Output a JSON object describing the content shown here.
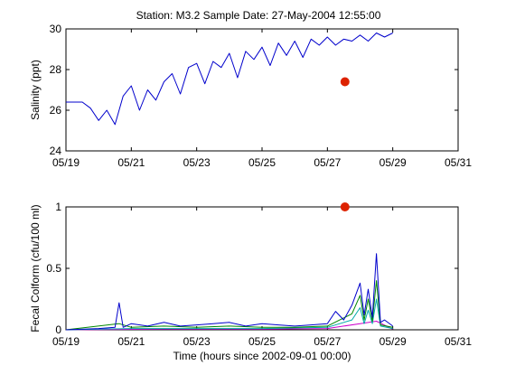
{
  "figure": {
    "title": "Station: M3.2  Sample Date: 27-May-2004 12:55:00"
  },
  "chart_data": [
    {
      "type": "line",
      "ylabel": "Salinity (ppt)",
      "xlabel": "",
      "xlim": [
        "05/19",
        "05/31"
      ],
      "ylim": [
        24,
        30
      ],
      "x_ticks": [
        "05/19",
        "05/21",
        "05/23",
        "05/25",
        "05/27",
        "05/29",
        "05/31"
      ],
      "y_ticks": [
        24,
        26,
        28,
        30
      ],
      "grid": false,
      "series": [
        {
          "color": "#0000cc",
          "points": [
            [
              "05/19",
              26.4
            ],
            [
              "05/19 12:00",
              26.4
            ],
            [
              "05/19 18:00",
              26.1
            ],
            [
              "05/20",
              25.5
            ],
            [
              "05/20 06:00",
              26.0
            ],
            [
              "05/20 12:00",
              25.3
            ],
            [
              "05/20 18:00",
              26.7
            ],
            [
              "05/21",
              27.2
            ],
            [
              "05/21 06:00",
              26.0
            ],
            [
              "05/21 12:00",
              27.0
            ],
            [
              "05/21 18:00",
              26.5
            ],
            [
              "05/22",
              27.4
            ],
            [
              "05/22 06:00",
              27.8
            ],
            [
              "05/22 12:00",
              26.8
            ],
            [
              "05/22 18:00",
              28.1
            ],
            [
              "05/23",
              28.3
            ],
            [
              "05/23 06:00",
              27.3
            ],
            [
              "05/23 12:00",
              28.4
            ],
            [
              "05/23 18:00",
              28.1
            ],
            [
              "05/24",
              28.8
            ],
            [
              "05/24 06:00",
              27.6
            ],
            [
              "05/24 12:00",
              28.9
            ],
            [
              "05/24 18:00",
              28.5
            ],
            [
              "05/25",
              29.1
            ],
            [
              "05/25 06:00",
              28.2
            ],
            [
              "05/25 12:00",
              29.3
            ],
            [
              "05/25 18:00",
              28.7
            ],
            [
              "05/26",
              29.4
            ],
            [
              "05/26 06:00",
              28.6
            ],
            [
              "05/26 12:00",
              29.5
            ],
            [
              "05/26 18:00",
              29.2
            ],
            [
              "05/27",
              29.6
            ],
            [
              "05/27 06:00",
              29.2
            ],
            [
              "05/27 12:00",
              29.5
            ],
            [
              "05/27 18:00",
              29.4
            ],
            [
              "05/28",
              29.7
            ],
            [
              "05/28 06:00",
              29.4
            ],
            [
              "05/28 12:00",
              29.8
            ],
            [
              "05/28 18:00",
              29.6
            ],
            [
              "05/29",
              29.8
            ]
          ]
        }
      ],
      "sample": {
        "x": "05/27 12:55",
        "y": 27.4,
        "color": "#dd2200"
      }
    },
    {
      "type": "line",
      "ylabel": "Fecal Colform (cfu/100 ml)",
      "xlabel": "Time (hours since 2002-09-01 00:00)",
      "xlim": [
        "05/19",
        "05/31"
      ],
      "ylim": [
        0,
        1
      ],
      "x_ticks": [
        "05/19",
        "05/21",
        "05/23",
        "05/25",
        "05/27",
        "05/29",
        "05/31"
      ],
      "y_ticks": [
        "0",
        "0.5",
        "1"
      ],
      "grid": false,
      "series": [
        {
          "color": "#0000cc",
          "points": [
            [
              "05/19",
              0.0
            ],
            [
              "05/20",
              0.01
            ],
            [
              "05/20 12:00",
              0.02
            ],
            [
              "05/20 15:00",
              0.22
            ],
            [
              "05/20 18:00",
              0.02
            ],
            [
              "05/21",
              0.05
            ],
            [
              "05/21 12:00",
              0.03
            ],
            [
              "05/22",
              0.06
            ],
            [
              "05/22 12:00",
              0.03
            ],
            [
              "05/23",
              0.04
            ],
            [
              "05/23 12:00",
              0.05
            ],
            [
              "05/24",
              0.06
            ],
            [
              "05/24 12:00",
              0.03
            ],
            [
              "05/25",
              0.05
            ],
            [
              "05/25 12:00",
              0.04
            ],
            [
              "05/26",
              0.03
            ],
            [
              "05/26 12:00",
              0.04
            ],
            [
              "05/27",
              0.05
            ],
            [
              "05/27 06:00",
              0.15
            ],
            [
              "05/27 12:00",
              0.08
            ],
            [
              "05/27 18:00",
              0.2
            ],
            [
              "05/28",
              0.38
            ],
            [
              "05/28 03:00",
              0.12
            ],
            [
              "05/28 06:00",
              0.33
            ],
            [
              "05/28 09:00",
              0.1
            ],
            [
              "05/28 12:00",
              0.62
            ],
            [
              "05/28 15:00",
              0.06
            ],
            [
              "05/28 18:00",
              0.08
            ],
            [
              "05/29",
              0.03
            ]
          ]
        },
        {
          "color": "#008800",
          "points": [
            [
              "05/19",
              0.0
            ],
            [
              "05/20 15:00",
              0.05
            ],
            [
              "05/21",
              0.02
            ],
            [
              "05/22",
              0.03
            ],
            [
              "05/23",
              0.02
            ],
            [
              "05/24",
              0.03
            ],
            [
              "05/25",
              0.02
            ],
            [
              "05/26",
              0.02
            ],
            [
              "05/27",
              0.03
            ],
            [
              "05/27 18:00",
              0.13
            ],
            [
              "05/28",
              0.28
            ],
            [
              "05/28 03:00",
              0.08
            ],
            [
              "05/28 06:00",
              0.25
            ],
            [
              "05/28 09:00",
              0.07
            ],
            [
              "05/28 12:00",
              0.4
            ],
            [
              "05/28 15:00",
              0.04
            ],
            [
              "05/29",
              0.02
            ]
          ]
        },
        {
          "color": "#00aaaa",
          "points": [
            [
              "05/19",
              0.0
            ],
            [
              "05/21",
              0.01
            ],
            [
              "05/23",
              0.01
            ],
            [
              "05/25",
              0.01
            ],
            [
              "05/27",
              0.02
            ],
            [
              "05/27 18:00",
              0.08
            ],
            [
              "05/28",
              0.18
            ],
            [
              "05/28 03:00",
              0.05
            ],
            [
              "05/28 06:00",
              0.16
            ],
            [
              "05/28 09:00",
              0.05
            ],
            [
              "05/28 12:00",
              0.25
            ],
            [
              "05/28 15:00",
              0.03
            ],
            [
              "05/29",
              0.01
            ]
          ]
        },
        {
          "color": "#cc00cc",
          "points": [
            [
              "05/19",
              0.0
            ],
            [
              "05/22",
              0.005
            ],
            [
              "05/25",
              0.005
            ],
            [
              "05/27",
              0.01
            ],
            [
              "05/28",
              0.05
            ],
            [
              "05/28 12:00",
              0.07
            ],
            [
              "05/29",
              0.005
            ]
          ]
        }
      ],
      "sample": {
        "x": "05/27 12:55",
        "y": 1.0,
        "color": "#dd2200"
      }
    }
  ]
}
